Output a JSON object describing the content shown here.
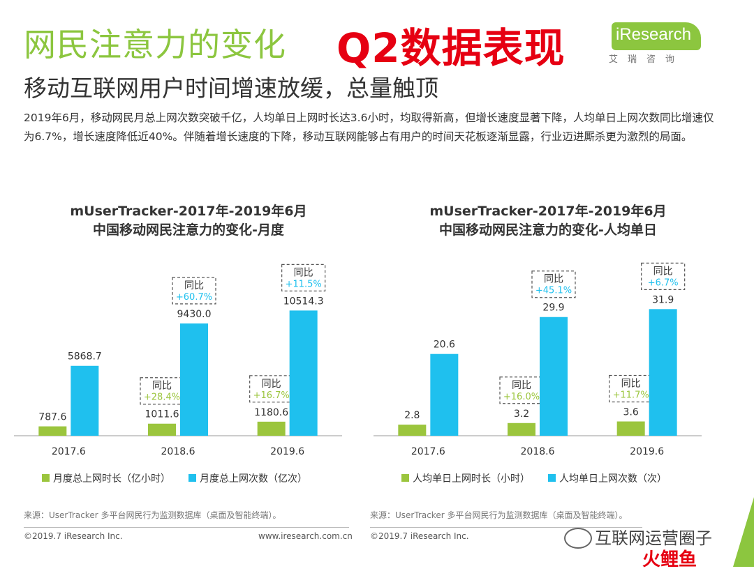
{
  "header": {
    "title": "网民注意力的变化",
    "badge": "Q2数据表现",
    "logo_text": "iResearch",
    "logo_cn": "艾瑞咨询",
    "subtitle": "移动互联网用户时间增速放缓，总量触顶",
    "paragraph": "2019年6月，移动网民月总上网次数突破千亿，人均单日上网时长达3.6小时，均取得新高，但增长速度显著下降，人均单日上网次数同比增速仅为6.7%，增长速度降低近40%。伴随着增长速度的下降，移动互联网能够占有用户的时间天花板逐渐显露，行业迈进厮杀更为激烈的局面。"
  },
  "chart_data": [
    {
      "type": "bar",
      "title": "mUserTracker-2017年-2019年6月",
      "subtitle": "中国移动网民注意力的变化-月度",
      "categories": [
        "2017.6",
        "2018.6",
        "2019.6"
      ],
      "series": [
        {
          "name": "月度总上网时长（亿小时）",
          "values": [
            787.6,
            1011.6,
            1180.6
          ],
          "color": "#9bc53d",
          "labels": [
            "787.6",
            "1011.6",
            "1180.6"
          ],
          "yoy": [
            null,
            "+28.4%",
            "+16.7%"
          ]
        },
        {
          "name": "月度总上网次数（亿次）",
          "values": [
            5868.7,
            9430.0,
            10514.3
          ],
          "color": "#1fc0ee",
          "labels": [
            "5868.7",
            "9430.0",
            "10514.3"
          ],
          "yoy": [
            null,
            "+60.7%",
            "+11.5%"
          ]
        }
      ],
      "yoy_label": "同比",
      "ylim": [
        0,
        12000
      ]
    },
    {
      "type": "bar",
      "title": "mUserTracker-2017年-2019年6月",
      "subtitle": "中国移动网民注意力的变化-人均单日",
      "categories": [
        "2017.6",
        "2018.6",
        "2019.6"
      ],
      "series": [
        {
          "name": "人均单日上网时长（小时）",
          "values": [
            2.8,
            3.2,
            3.6
          ],
          "color": "#9bc53d",
          "labels": [
            "2.8",
            "3.2",
            "3.6"
          ],
          "yoy": [
            null,
            "+16.0%",
            "+11.7%"
          ]
        },
        {
          "name": "人均单日上网次数（次）",
          "values": [
            20.6,
            29.9,
            31.9
          ],
          "color": "#1fc0ee",
          "labels": [
            "20.6",
            "29.9",
            "31.9"
          ],
          "yoy": [
            null,
            "+45.1%",
            "+6.7%"
          ]
        }
      ],
      "yoy_label": "同比",
      "ylim": [
        0,
        36
      ]
    }
  ],
  "footer": {
    "source_left": "来源：UserTracker 多平台网民行为监测数据库（桌面及智能终端）。",
    "source_right": "来源：UserTracker 多平台网民行为监测数据库（桌面及智能终端）。",
    "copyright_left": "©2019.7 iResearch Inc.",
    "website": "www.iresearch.com.cn",
    "copyright_right": "©2019.7 iResearch Inc.",
    "watermark": "互联网运营圈子",
    "watermark_red": "火鲤鱼"
  }
}
